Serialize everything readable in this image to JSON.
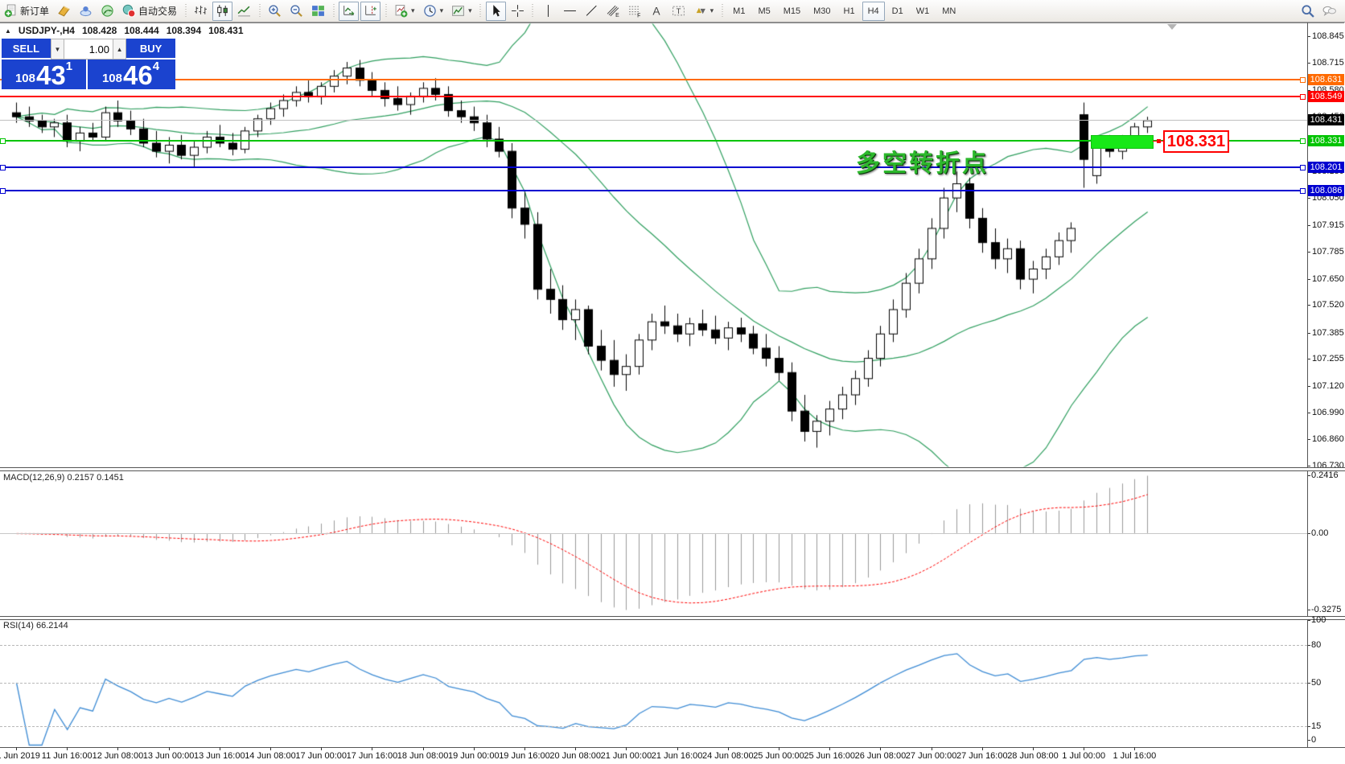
{
  "toolbar": {
    "groups": [
      {
        "items": [
          {
            "name": "new-order-button",
            "icon": "neworder",
            "label": "新订单"
          },
          {
            "name": "mql-editor-button",
            "icon": "book"
          },
          {
            "name": "mql-community-button",
            "icon": "cloud"
          },
          {
            "name": "signals-button",
            "icon": "signal"
          },
          {
            "name": "auto-trading-button",
            "icon": "auto",
            "label": "自动交易"
          }
        ]
      },
      {
        "items": [
          {
            "name": "bar-chart-button",
            "icon": "bars"
          },
          {
            "name": "candlestick-chart-button",
            "icon": "candles",
            "active": true
          },
          {
            "name": "line-chart-button",
            "icon": "linechart"
          }
        ]
      },
      {
        "items": [
          {
            "name": "zoom-in-button",
            "icon": "zoomin"
          },
          {
            "name": "zoom-out-button",
            "icon": "zoomout"
          },
          {
            "name": "tile-windows-button",
            "icon": "tile"
          }
        ]
      },
      {
        "items": [
          {
            "name": "auto-scroll-button",
            "icon": "autoscroll",
            "active": true
          },
          {
            "name": "chart-shift-button",
            "icon": "shift",
            "active": true
          }
        ]
      },
      {
        "items": [
          {
            "name": "indicators-button",
            "icon": "indicators",
            "caret": true
          },
          {
            "name": "periods-button",
            "icon": "clock",
            "caret": true
          },
          {
            "name": "templates-button",
            "icon": "template",
            "caret": true
          }
        ]
      },
      {
        "items": [
          {
            "name": "cursor-button",
            "icon": "cursor",
            "active": true
          },
          {
            "name": "crosshair-button",
            "icon": "crosshair"
          }
        ]
      },
      {
        "items": [
          {
            "name": "vertical-line-button",
            "icon": "vline"
          },
          {
            "name": "horizontal-line-button",
            "icon": "hline"
          },
          {
            "name": "trendline-button",
            "icon": "tline"
          },
          {
            "name": "equidistant-channel-button",
            "icon": "channel"
          },
          {
            "name": "fibonacci-button",
            "icon": "fibo"
          },
          {
            "name": "text-button",
            "icon": "textA"
          },
          {
            "name": "text-label-button",
            "icon": "labelT"
          },
          {
            "name": "arrows-button",
            "icon": "arrows",
            "caret": true
          }
        ]
      },
      {
        "items": [
          {
            "name": "tf-m1-button",
            "text": "M1"
          },
          {
            "name": "tf-m5-button",
            "text": "M5"
          },
          {
            "name": "tf-m15-button",
            "text": "M15"
          },
          {
            "name": "tf-m30-button",
            "text": "M30"
          },
          {
            "name": "tf-h1-button",
            "text": "H1"
          },
          {
            "name": "tf-h4-button",
            "text": "H4",
            "active": true
          },
          {
            "name": "tf-d1-button",
            "text": "D1"
          },
          {
            "name": "tf-w1-button",
            "text": "W1"
          },
          {
            "name": "tf-mn-button",
            "text": "MN"
          }
        ]
      },
      {
        "align": "right",
        "items": [
          {
            "name": "search-button",
            "icon": "search"
          },
          {
            "name": "chat-button",
            "icon": "chat"
          }
        ]
      }
    ]
  },
  "header": {
    "collapse_glyph": "▲",
    "symbol": "USDJPY-,H4",
    "open": "108.428",
    "high": "108.444",
    "low": "108.394",
    "close": "108.431"
  },
  "one_click": {
    "sell_label": "SELL",
    "buy_label": "BUY",
    "volume": "1.00",
    "spin_down_glyph": "▼",
    "spin_up_glyph": "▲",
    "sell_prefix": "108",
    "sell_big": "43",
    "sell_sup": "1",
    "buy_prefix": "108",
    "buy_big": "46",
    "buy_sup": "4",
    "panel_color": "#1b43cf"
  },
  "chart": {
    "annotation": "多空转折点",
    "annotation_color": "#2db82d",
    "price_tag": "108.331",
    "price_tag_color": "#ff0000",
    "highlight_color": "#17e817",
    "bid": {
      "value": 108.431,
      "label": "108.431",
      "line_color": "#c0c0c0",
      "badge_bg": "#000000"
    },
    "levels": [
      {
        "value": 108.631,
        "label": "108.631",
        "color": "#ff6a00"
      },
      {
        "value": 108.549,
        "label": "108.549",
        "color": "#ff0000"
      },
      {
        "value": 108.331,
        "label": "108.331",
        "color": "#00c400"
      },
      {
        "value": 108.201,
        "label": "108.201",
        "color": "#0000d0"
      },
      {
        "value": 108.086,
        "label": "108.086",
        "color": "#0000d0"
      }
    ],
    "axis_ticks": [
      "108.845",
      "108.715",
      "108.580",
      "108.450",
      "108.315",
      "108.180",
      "108.050",
      "107.915",
      "107.785",
      "107.650",
      "107.520",
      "107.385",
      "107.255",
      "107.120",
      "106.990",
      "106.860",
      "106.730"
    ],
    "time_labels": [
      "11 Jun 2019",
      "11 Jun 16:00",
      "12 Jun 08:00",
      "13 Jun 00:00",
      "13 Jun 16:00",
      "14 Jun 08:00",
      "17 Jun 00:00",
      "17 Jun 16:00",
      "18 Jun 08:00",
      "19 Jun 00:00",
      "19 Jun 16:00",
      "20 Jun 08:00",
      "21 Jun 00:00",
      "21 Jun 16:00",
      "24 Jun 08:00",
      "25 Jun 00:00",
      "25 Jun 16:00",
      "26 Jun 08:00",
      "27 Jun 00:00",
      "27 Jun 16:00",
      "28 Jun 08:00",
      "1 Jul 00:00",
      "1 Jul 16:00"
    ]
  },
  "macd": {
    "label": "MACD(12,26,9) 0.2157 0.1451",
    "scale_top": "0.2416",
    "scale_zero": "0.00",
    "scale_bottom": "-0.3275"
  },
  "rsi": {
    "label": "RSI(14) 66.2144",
    "scale": [
      "100",
      "80",
      "50",
      "15",
      "0"
    ],
    "level_lines": [
      80,
      50,
      15
    ]
  },
  "chart_data": {
    "type": "candlestick",
    "symbol": "USDJPY-",
    "timeframe": "H4",
    "x_range": [
      "11 Jun 2019 00:00",
      "1 Jul 2019 20:00"
    ],
    "y_axis_range": [
      106.73,
      108.845
    ],
    "indicators": {
      "bollinger": {
        "period": 20,
        "deviation": 2,
        "color": "#2e9e5e"
      },
      "macd": {
        "fast": 12,
        "slow": 26,
        "signal": 9,
        "current_main": 0.2157,
        "current_signal": 0.1451,
        "scale": [
          -0.3275,
          0.2416
        ]
      },
      "rsi": {
        "period": 14,
        "current": 66.2144,
        "scale": [
          0,
          100
        ]
      }
    },
    "candles": [
      [
        108.47,
        108.52,
        108.42,
        108.45
      ],
      [
        108.45,
        108.5,
        108.4,
        108.43
      ],
      [
        108.43,
        108.46,
        108.37,
        108.4
      ],
      [
        108.4,
        108.44,
        108.35,
        108.42
      ],
      [
        108.42,
        108.46,
        108.3,
        108.33
      ],
      [
        108.33,
        108.4,
        108.28,
        108.37
      ],
      [
        108.37,
        108.42,
        108.33,
        108.35
      ],
      [
        108.35,
        108.5,
        108.33,
        108.47
      ],
      [
        108.47,
        108.53,
        108.4,
        108.43
      ],
      [
        108.43,
        108.48,
        108.36,
        108.39
      ],
      [
        108.39,
        108.44,
        108.3,
        108.32
      ],
      [
        108.32,
        108.38,
        108.25,
        108.28
      ],
      [
        108.28,
        108.35,
        108.22,
        108.31
      ],
      [
        108.31,
        108.36,
        108.24,
        108.26
      ],
      [
        108.26,
        108.33,
        108.2,
        108.3
      ],
      [
        108.3,
        108.38,
        108.27,
        108.35
      ],
      [
        108.35,
        108.41,
        108.3,
        108.32
      ],
      [
        108.32,
        108.37,
        108.26,
        108.29
      ],
      [
        108.29,
        108.4,
        108.27,
        108.38
      ],
      [
        108.38,
        108.46,
        108.35,
        108.44
      ],
      [
        108.44,
        108.52,
        108.41,
        108.49
      ],
      [
        108.49,
        108.56,
        108.45,
        108.53
      ],
      [
        108.53,
        108.6,
        108.5,
        108.57
      ],
      [
        108.57,
        108.63,
        108.52,
        108.55
      ],
      [
        108.55,
        108.62,
        108.51,
        108.6
      ],
      [
        108.6,
        108.68,
        108.57,
        108.65
      ],
      [
        108.65,
        108.72,
        108.61,
        108.69
      ],
      [
        108.69,
        108.73,
        108.6,
        108.63
      ],
      [
        108.63,
        108.67,
        108.55,
        108.58
      ],
      [
        108.58,
        108.62,
        108.5,
        108.54
      ],
      [
        108.54,
        108.6,
        108.48,
        108.51
      ],
      [
        108.51,
        108.57,
        108.46,
        108.55
      ],
      [
        108.55,
        108.62,
        108.52,
        108.59
      ],
      [
        108.59,
        108.64,
        108.53,
        108.56
      ],
      [
        108.56,
        108.6,
        108.45,
        108.48
      ],
      [
        108.48,
        108.53,
        108.42,
        108.45
      ],
      [
        108.45,
        108.5,
        108.38,
        108.42
      ],
      [
        108.42,
        108.46,
        108.3,
        108.34
      ],
      [
        108.34,
        108.4,
        108.25,
        108.28
      ],
      [
        108.28,
        108.32,
        107.95,
        108.0
      ],
      [
        108.0,
        108.08,
        107.85,
        107.92
      ],
      [
        107.92,
        107.98,
        107.55,
        107.6
      ],
      [
        107.6,
        107.7,
        107.48,
        107.55
      ],
      [
        107.55,
        107.62,
        107.4,
        107.45
      ],
      [
        107.45,
        107.55,
        107.35,
        107.5
      ],
      [
        107.5,
        107.52,
        107.28,
        107.32
      ],
      [
        107.32,
        107.4,
        107.2,
        107.25
      ],
      [
        107.25,
        107.35,
        107.12,
        107.18
      ],
      [
        107.18,
        107.28,
        107.1,
        107.22
      ],
      [
        107.22,
        107.38,
        107.18,
        107.35
      ],
      [
        107.35,
        107.48,
        107.3,
        107.44
      ],
      [
        107.44,
        107.52,
        107.38,
        107.42
      ],
      [
        107.42,
        107.48,
        107.34,
        107.38
      ],
      [
        107.38,
        107.46,
        107.32,
        107.43
      ],
      [
        107.43,
        107.5,
        107.37,
        107.4
      ],
      [
        107.4,
        107.47,
        107.33,
        107.36
      ],
      [
        107.36,
        107.44,
        107.3,
        107.41
      ],
      [
        107.41,
        107.46,
        107.34,
        107.38
      ],
      [
        107.38,
        107.42,
        107.28,
        107.31
      ],
      [
        107.31,
        107.38,
        107.22,
        107.26
      ],
      [
        107.26,
        107.32,
        107.15,
        107.19
      ],
      [
        107.19,
        107.24,
        106.95,
        107.0
      ],
      [
        107.0,
        107.08,
        106.85,
        106.9
      ],
      [
        106.9,
        106.98,
        106.82,
        106.95
      ],
      [
        106.95,
        107.05,
        106.88,
        107.01
      ],
      [
        107.01,
        107.12,
        106.96,
        107.08
      ],
      [
        107.08,
        107.2,
        107.03,
        107.16
      ],
      [
        107.16,
        107.3,
        107.12,
        107.26
      ],
      [
        107.26,
        107.42,
        107.22,
        107.38
      ],
      [
        107.38,
        107.55,
        107.34,
        107.5
      ],
      [
        107.5,
        107.68,
        107.46,
        107.63
      ],
      [
        107.63,
        107.8,
        107.58,
        107.75
      ],
      [
        107.75,
        107.95,
        107.7,
        107.9
      ],
      [
        107.9,
        108.1,
        107.85,
        108.05
      ],
      [
        108.05,
        108.18,
        107.98,
        108.12
      ],
      [
        108.12,
        108.15,
        107.9,
        107.95
      ],
      [
        107.95,
        108.0,
        107.78,
        107.83
      ],
      [
        107.83,
        107.9,
        107.7,
        107.75
      ],
      [
        107.75,
        107.85,
        107.68,
        107.8
      ],
      [
        107.8,
        107.84,
        107.6,
        107.65
      ],
      [
        107.65,
        107.74,
        107.58,
        107.7
      ],
      [
        107.7,
        107.8,
        107.65,
        107.76
      ],
      [
        107.76,
        107.88,
        107.72,
        107.84
      ],
      [
        107.84,
        107.93,
        107.78,
        107.9
      ],
      [
        108.46,
        108.52,
        108.1,
        108.24
      ],
      [
        108.16,
        108.34,
        108.12,
        108.31
      ],
      [
        108.31,
        108.36,
        108.25,
        108.28
      ],
      [
        108.28,
        108.36,
        108.24,
        108.33
      ],
      [
        108.33,
        108.42,
        108.3,
        108.4
      ],
      [
        108.4,
        108.45,
        108.37,
        108.431
      ]
    ]
  }
}
